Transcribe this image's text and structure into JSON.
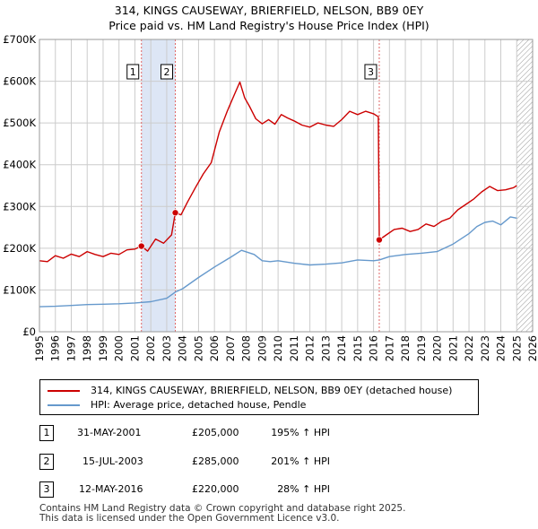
{
  "title_line1": "314, KINGS CAUSEWAY, BRIERFIELD, NELSON, BB9 0EY",
  "title_line2": "Price paid vs. HM Land Registry's House Price Index (HPI)",
  "colors": {
    "price": "#cc0000",
    "hpi": "#6699cc",
    "grid": "#cccccc",
    "shade": "#dde6f5"
  },
  "chart_data": {
    "type": "line",
    "title": "Price paid vs. HM Land Registry's House Price Index (HPI)",
    "xlabel": "",
    "ylabel": "",
    "xlim": [
      1995,
      2026
    ],
    "ylim": [
      0,
      700000
    ],
    "x_ticks": [
      "1995",
      "1996",
      "1997",
      "1998",
      "1999",
      "2000",
      "2001",
      "2002",
      "2003",
      "2004",
      "2005",
      "2006",
      "2007",
      "2008",
      "2009",
      "2010",
      "2011",
      "2012",
      "2013",
      "2014",
      "2015",
      "2016",
      "2017",
      "2018",
      "2019",
      "2020",
      "2021",
      "2022",
      "2023",
      "2024",
      "2025",
      "2026"
    ],
    "y_ticks": [
      {
        "value": 0,
        "label": "£0"
      },
      {
        "value": 100000,
        "label": "£100K"
      },
      {
        "value": 200000,
        "label": "£200K"
      },
      {
        "value": 300000,
        "label": "£300K"
      },
      {
        "value": 400000,
        "label": "£400K"
      },
      {
        "value": 500000,
        "label": "£500K"
      },
      {
        "value": 600000,
        "label": "£600K"
      },
      {
        "value": 700000,
        "label": "£700K"
      }
    ],
    "grid": true,
    "series": [
      {
        "name": "314, KINGS CAUSEWAY, BRIERFIELD, NELSON, BB9 0EY (detached house)",
        "x": [
          1995.0,
          1995.5,
          1996.0,
          1996.5,
          1997.0,
          1997.5,
          1998.0,
          1998.5,
          1999.0,
          1999.5,
          2000.0,
          2000.5,
          2001.0,
          2001.41,
          2001.8,
          2002.3,
          2002.8,
          2003.3,
          2003.54,
          2003.9,
          2004.3,
          2004.8,
          2005.3,
          2005.8,
          2006.3,
          2006.8,
          2007.3,
          2007.6,
          2007.9,
          2008.2,
          2008.6,
          2009.0,
          2009.4,
          2009.8,
          2010.2,
          2010.6,
          2011.0,
          2011.5,
          2012.0,
          2012.5,
          2013.0,
          2013.5,
          2014.0,
          2014.5,
          2015.0,
          2015.5,
          2016.0,
          2016.3,
          2016.36,
          2016.8,
          2017.3,
          2017.8,
          2018.3,
          2018.8,
          2019.3,
          2019.8,
          2020.3,
          2020.8,
          2021.3,
          2021.8,
          2022.3,
          2022.8,
          2023.3,
          2023.8,
          2024.3,
          2024.8,
          2025.0
        ],
        "y": [
          170000,
          168000,
          182000,
          176000,
          186000,
          180000,
          192000,
          185000,
          180000,
          188000,
          185000,
          196000,
          198000,
          205000,
          193000,
          222000,
          212000,
          232000,
          285000,
          280000,
          310000,
          345000,
          378000,
          405000,
          478000,
          528000,
          572000,
          598000,
          560000,
          540000,
          510000,
          498000,
          508000,
          497000,
          520000,
          512000,
          505000,
          495000,
          490000,
          500000,
          495000,
          492000,
          508000,
          528000,
          520000,
          528000,
          522000,
          515000,
          220000,
          232000,
          245000,
          248000,
          240000,
          245000,
          258000,
          252000,
          265000,
          272000,
          292000,
          305000,
          318000,
          335000,
          348000,
          338000,
          340000,
          345000,
          350000
        ]
      },
      {
        "name": "HPI: Average price, detached house, Pendle",
        "x": [
          1995.0,
          1996.0,
          1997.0,
          1998.0,
          1999.0,
          2000.0,
          2001.0,
          2002.0,
          2003.0,
          2003.54,
          2004.0,
          2005.0,
          2006.0,
          2007.0,
          2007.7,
          2008.5,
          2009.0,
          2009.5,
          2010.0,
          2011.0,
          2012.0,
          2013.0,
          2014.0,
          2015.0,
          2016.0,
          2016.36,
          2017.0,
          2018.0,
          2019.0,
          2020.0,
          2021.0,
          2022.0,
          2022.5,
          2023.0,
          2023.5,
          2024.0,
          2024.6,
          2025.0
        ],
        "y": [
          60000,
          61000,
          63000,
          65000,
          66000,
          67000,
          69000,
          72000,
          80000,
          95000,
          103000,
          130000,
          155000,
          178000,
          195000,
          185000,
          170000,
          168000,
          170000,
          164000,
          160000,
          162000,
          165000,
          172000,
          170000,
          172000,
          180000,
          185000,
          188000,
          192000,
          210000,
          235000,
          252000,
          262000,
          265000,
          256000,
          275000,
          272000
        ]
      }
    ],
    "markers": [
      {
        "label": "1",
        "x": 2001.41,
        "y": 205000
      },
      {
        "label": "2",
        "x": 2003.54,
        "y": 285000
      },
      {
        "label": "3",
        "x": 2016.36,
        "y": 220000
      }
    ],
    "shaded_ranges": [
      [
        2001.41,
        2003.54
      ]
    ],
    "hatched_range": [
      2025.0,
      2026.0
    ]
  },
  "legend": {
    "price_label": "314, KINGS CAUSEWAY, BRIERFIELD, NELSON, BB9 0EY (detached house)",
    "hpi_label": "HPI: Average price, detached house, Pendle"
  },
  "transactions": [
    {
      "num": "1",
      "date": "31-MAY-2001",
      "price": "£205,000",
      "hpi": "195% ↑ HPI"
    },
    {
      "num": "2",
      "date": "15-JUL-2003",
      "price": "£285,000",
      "hpi": "201% ↑ HPI"
    },
    {
      "num": "3",
      "date": "12-MAY-2016",
      "price": "£220,000",
      "hpi": "28% ↑ HPI"
    }
  ],
  "footer": {
    "line1": "Contains HM Land Registry data © Crown copyright and database right 2025.",
    "line2": "This data is licensed under the Open Government Licence v3.0."
  }
}
